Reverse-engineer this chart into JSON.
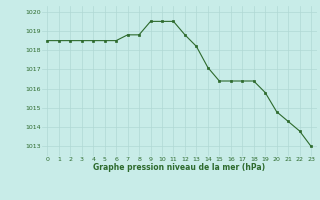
{
  "x": [
    0,
    1,
    2,
    3,
    4,
    5,
    6,
    7,
    8,
    9,
    10,
    11,
    12,
    13,
    14,
    15,
    16,
    17,
    18,
    19,
    20,
    21,
    22,
    23
  ],
  "y": [
    1018.5,
    1018.5,
    1018.5,
    1018.5,
    1018.5,
    1018.5,
    1018.5,
    1018.8,
    1018.8,
    1019.5,
    1019.5,
    1019.5,
    1018.8,
    1018.2,
    1017.1,
    1016.4,
    1016.4,
    1016.4,
    1016.4,
    1015.8,
    1014.8,
    1014.3,
    1013.8,
    1013.0
  ],
  "line_color": "#2d6a2d",
  "marker_color": "#2d6a2d",
  "bg_color": "#c8ece8",
  "grid_color": "#b0d8d4",
  "xlabel": "Graphe pression niveau de la mer (hPa)",
  "xlabel_color": "#2d6a2d",
  "tick_color": "#2d6a2d",
  "ylim": [
    1012.5,
    1020.3
  ],
  "xlim": [
    -0.5,
    23.5
  ],
  "yticks": [
    1013,
    1014,
    1015,
    1016,
    1017,
    1018,
    1019,
    1020
  ],
  "xticks": [
    0,
    1,
    2,
    3,
    4,
    5,
    6,
    7,
    8,
    9,
    10,
    11,
    12,
    13,
    14,
    15,
    16,
    17,
    18,
    19,
    20,
    21,
    22,
    23
  ]
}
